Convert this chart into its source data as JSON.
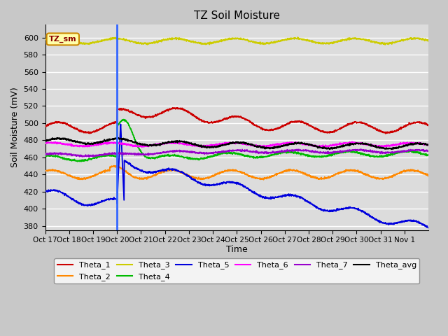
{
  "title": "TZ Soil Moisture",
  "ylabel": "Soil Moisture (mV)",
  "xlabel": "Time",
  "ylim": [
    375,
    615
  ],
  "background_color": "#dcdcdc",
  "grid_color": "#ffffff",
  "vline_day": 3.0,
  "xtick_labels": [
    "Oct 17",
    "Oct 18",
    "Oct 19",
    "Oct 20",
    "Oct 21",
    "Oct 22",
    "Oct 23",
    "Oct 24",
    "Oct 25",
    "Oct 26",
    "Oct 27",
    "Oct 28",
    "Oct 29",
    "Oct 30",
    "Oct 31",
    "Nov 1"
  ],
  "annotation_label": "TZ_sm",
  "colors": {
    "Theta_1": "#cc0000",
    "Theta_2": "#ff8800",
    "Theta_3": "#cccc00",
    "Theta_4": "#00bb00",
    "Theta_5": "#0000dd",
    "Theta_6": "#ff00ff",
    "Theta_7": "#9900cc",
    "Theta_avg": "#000000"
  }
}
